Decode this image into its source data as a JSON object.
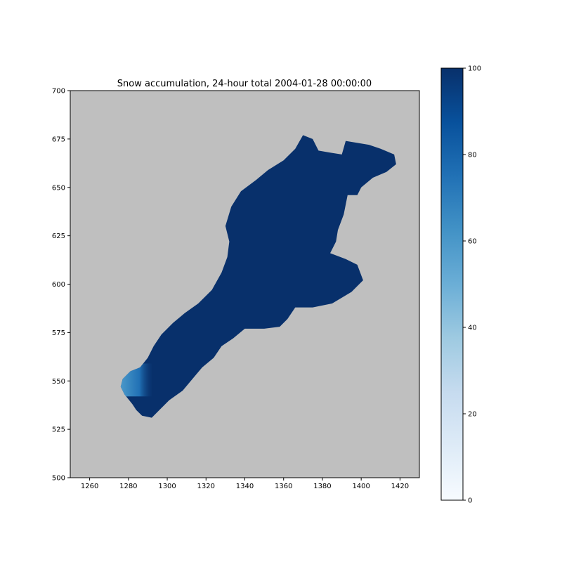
{
  "chart_data": {
    "type": "heatmap",
    "title": "Snow accumulation, 24-hour total 2004-01-28 00:00:00",
    "xlim": [
      1250,
      1430
    ],
    "ylim": [
      500,
      700
    ],
    "xticks": [
      1260,
      1280,
      1300,
      1320,
      1340,
      1360,
      1380,
      1400,
      1420
    ],
    "yticks": [
      500,
      525,
      550,
      575,
      600,
      625,
      650,
      675,
      700
    ],
    "background_color": "#bfbfbf",
    "colormap": "Blues",
    "colorbar": {
      "range": [
        0,
        100
      ],
      "ticks": [
        0,
        20,
        40,
        60,
        80,
        100
      ]
    },
    "region_value": 100,
    "region_outline": [
      [
        1370,
        677
      ],
      [
        1375,
        675
      ],
      [
        1378,
        669
      ],
      [
        1384,
        668
      ],
      [
        1390,
        667
      ],
      [
        1392,
        674
      ],
      [
        1398,
        673
      ],
      [
        1404,
        672
      ],
      [
        1410,
        670
      ],
      [
        1417,
        667
      ],
      [
        1418,
        662
      ],
      [
        1413,
        658
      ],
      [
        1406,
        655
      ],
      [
        1400,
        650
      ],
      [
        1398,
        646
      ],
      [
        1393,
        646
      ],
      [
        1391,
        636
      ],
      [
        1388,
        628
      ],
      [
        1387,
        622
      ],
      [
        1384,
        616
      ],
      [
        1392,
        613
      ],
      [
        1398,
        610
      ],
      [
        1401,
        602
      ],
      [
        1395,
        596
      ],
      [
        1385,
        590
      ],
      [
        1375,
        588
      ],
      [
        1366,
        588
      ],
      [
        1362,
        582
      ],
      [
        1358,
        578
      ],
      [
        1350,
        577
      ],
      [
        1340,
        577
      ],
      [
        1334,
        572
      ],
      [
        1328,
        568
      ],
      [
        1324,
        562
      ],
      [
        1318,
        557
      ],
      [
        1313,
        551
      ],
      [
        1308,
        545
      ],
      [
        1301,
        540
      ],
      [
        1297,
        536
      ],
      [
        1292,
        531
      ],
      [
        1287,
        532
      ],
      [
        1284,
        535
      ],
      [
        1282,
        538
      ],
      [
        1278,
        543
      ],
      [
        1276,
        547
      ],
      [
        1277,
        551
      ],
      [
        1281,
        555
      ],
      [
        1286,
        557
      ],
      [
        1290,
        562
      ],
      [
        1293,
        568
      ],
      [
        1297,
        574
      ],
      [
        1303,
        580
      ],
      [
        1309,
        585
      ],
      [
        1316,
        590
      ],
      [
        1323,
        597
      ],
      [
        1328,
        606
      ],
      [
        1331,
        614
      ],
      [
        1332,
        622
      ],
      [
        1330,
        630
      ],
      [
        1333,
        640
      ],
      [
        1338,
        648
      ],
      [
        1346,
        654
      ],
      [
        1352,
        659
      ],
      [
        1360,
        664
      ],
      [
        1366,
        670
      ],
      [
        1370,
        677
      ]
    ],
    "gradient_patch": {
      "x_range": [
        1276,
        1292
      ],
      "y_range": [
        542,
        559
      ],
      "value_min": 55,
      "value_max": 100
    }
  }
}
